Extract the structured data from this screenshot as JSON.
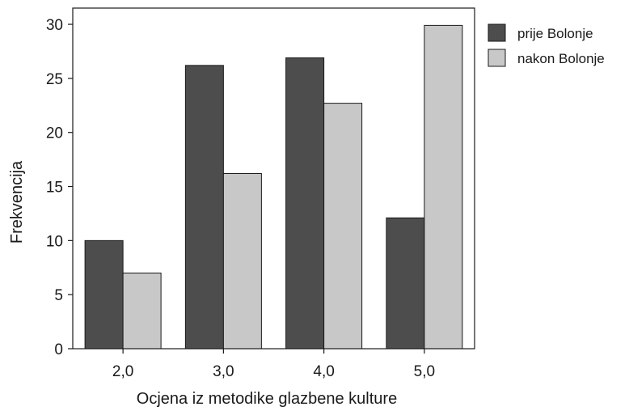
{
  "chart_data": {
    "type": "bar",
    "title": "",
    "xlabel": "Ocjena iz metodike glazbene kulture",
    "ylabel": "Frekvencija",
    "categories": [
      "2,0",
      "3,0",
      "4,0",
      "5,0"
    ],
    "ylim": [
      0,
      31.5
    ],
    "yticks": [
      0,
      5,
      10,
      15,
      20,
      25,
      30
    ],
    "grid": false,
    "legend_position": "right",
    "series": [
      {
        "name": "prije Bolonje",
        "color": "#4d4d4d",
        "values": [
          10,
          26.2,
          26.9,
          12.1
        ]
      },
      {
        "name": "nakon Bolonje",
        "color": "#c8c8c8",
        "values": [
          7,
          16.2,
          22.7,
          29.9
        ]
      }
    ]
  }
}
